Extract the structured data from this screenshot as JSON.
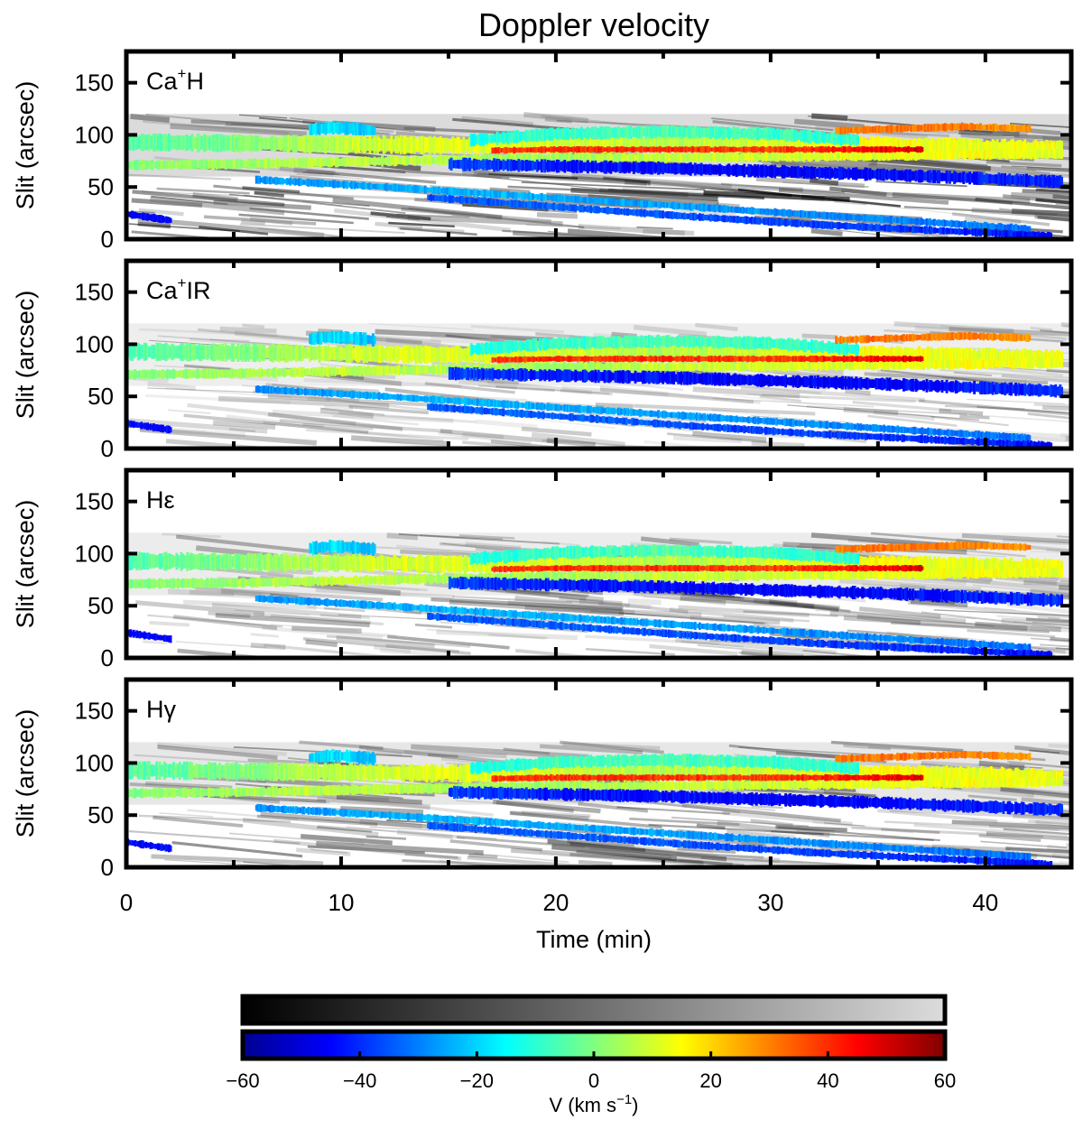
{
  "chart_data": {
    "type": "heatmap",
    "title": "Doppler velocity",
    "xlabel": "Time (min)",
    "ylabel": "Slit (arcsec)",
    "xlim": [
      0,
      44
    ],
    "ylim": [
      0,
      180
    ],
    "xticks": [
      "0",
      "10",
      "20",
      "30",
      "40"
    ],
    "yticks": [
      "0",
      "50",
      "100",
      "150"
    ],
    "panels": [
      {
        "label_main": "Ca",
        "label_sup": "+",
        "label_rest": "H"
      },
      {
        "label_main": "Ca",
        "label_sup": "+",
        "label_rest": "IR"
      },
      {
        "label_main": "Hε",
        "label_sup": "",
        "label_rest": ""
      },
      {
        "label_main": "Hγ",
        "label_sup": "",
        "label_rest": ""
      }
    ],
    "bands": [
      {
        "name": "upper-cyan-yellow",
        "x": [
          0,
          5,
          10,
          15,
          20,
          25,
          30,
          35,
          40,
          43.5
        ],
        "center": [
          93,
          92,
          91,
          90,
          90,
          91,
          91,
          90,
          88,
          86
        ],
        "width": 7,
        "vel": [
          -5,
          0,
          8,
          12,
          10,
          6,
          10,
          15,
          12,
          14
        ]
      },
      {
        "name": "green-arc",
        "x": [
          16,
          20,
          25,
          30,
          34
        ],
        "center": [
          95,
          101,
          103,
          101,
          95
        ],
        "width": 5,
        "vel": [
          -12,
          -8,
          -6,
          -8,
          -10
        ]
      },
      {
        "name": "lower-green",
        "x": [
          0,
          5,
          10,
          15,
          20,
          25,
          30,
          35,
          40,
          43.5
        ],
        "center": [
          71,
          72,
          74,
          76,
          78,
          78,
          79,
          80,
          81,
          82
        ],
        "width": 4,
        "vel": [
          0,
          4,
          8,
          6,
          4,
          8,
          10,
          12,
          14,
          12
        ]
      },
      {
        "name": "red-streak",
        "x": [
          17,
          20,
          25,
          30,
          35,
          37
        ],
        "center": [
          85,
          86,
          86,
          86,
          86,
          86
        ],
        "width": 2.5,
        "vel": [
          38,
          40,
          40,
          38,
          45,
          50
        ]
      },
      {
        "name": "blue-descending",
        "x": [
          15,
          20,
          25,
          30,
          35,
          40,
          43.5
        ],
        "center": [
          72,
          70,
          68,
          65,
          62,
          58,
          55
        ],
        "width": 5,
        "vel": [
          -38,
          -42,
          -44,
          -46,
          -45,
          -42,
          -40
        ]
      },
      {
        "name": "cyan-descending",
        "x": [
          6,
          12,
          18,
          24,
          30,
          36,
          42
        ],
        "center": [
          57,
          50,
          42,
          34,
          26,
          18,
          10
        ],
        "width": 3,
        "vel": [
          -28,
          -25,
          -24,
          -26,
          -28,
          -30,
          -32
        ]
      },
      {
        "name": "lower-blue-descending",
        "x": [
          14,
          20,
          26,
          32,
          38,
          43
        ],
        "center": [
          40,
          31,
          22,
          14,
          8,
          3
        ],
        "width": 3,
        "vel": [
          -35,
          -34,
          -36,
          -38,
          -40,
          -44
        ]
      },
      {
        "name": "bottom-left-blue",
        "x": [
          0,
          1,
          2
        ],
        "center": [
          24,
          21,
          18
        ],
        "width": 3,
        "vel": [
          -45,
          -45,
          -45
        ]
      },
      {
        "name": "knot-cyan",
        "x": [
          8.5,
          9.5,
          10.5,
          11.5
        ],
        "center": [
          105,
          107,
          106,
          104
        ],
        "width": 5,
        "vel": [
          -20,
          -18,
          -20,
          -22
        ]
      },
      {
        "name": "right-orange",
        "x": [
          33,
          36,
          39,
          42
        ],
        "center": [
          104,
          106,
          108,
          106
        ],
        "width": 3,
        "vel": [
          30,
          32,
          30,
          28
        ]
      }
    ],
    "colorbar": {
      "gray_label": "",
      "vmin": -60,
      "vmax": 60,
      "ticks": [
        "−60",
        "−40",
        "−20",
        "0",
        "20",
        "40",
        "60"
      ],
      "label": "V (km s",
      "label_sup": "−1",
      "label_close": ")"
    }
  }
}
